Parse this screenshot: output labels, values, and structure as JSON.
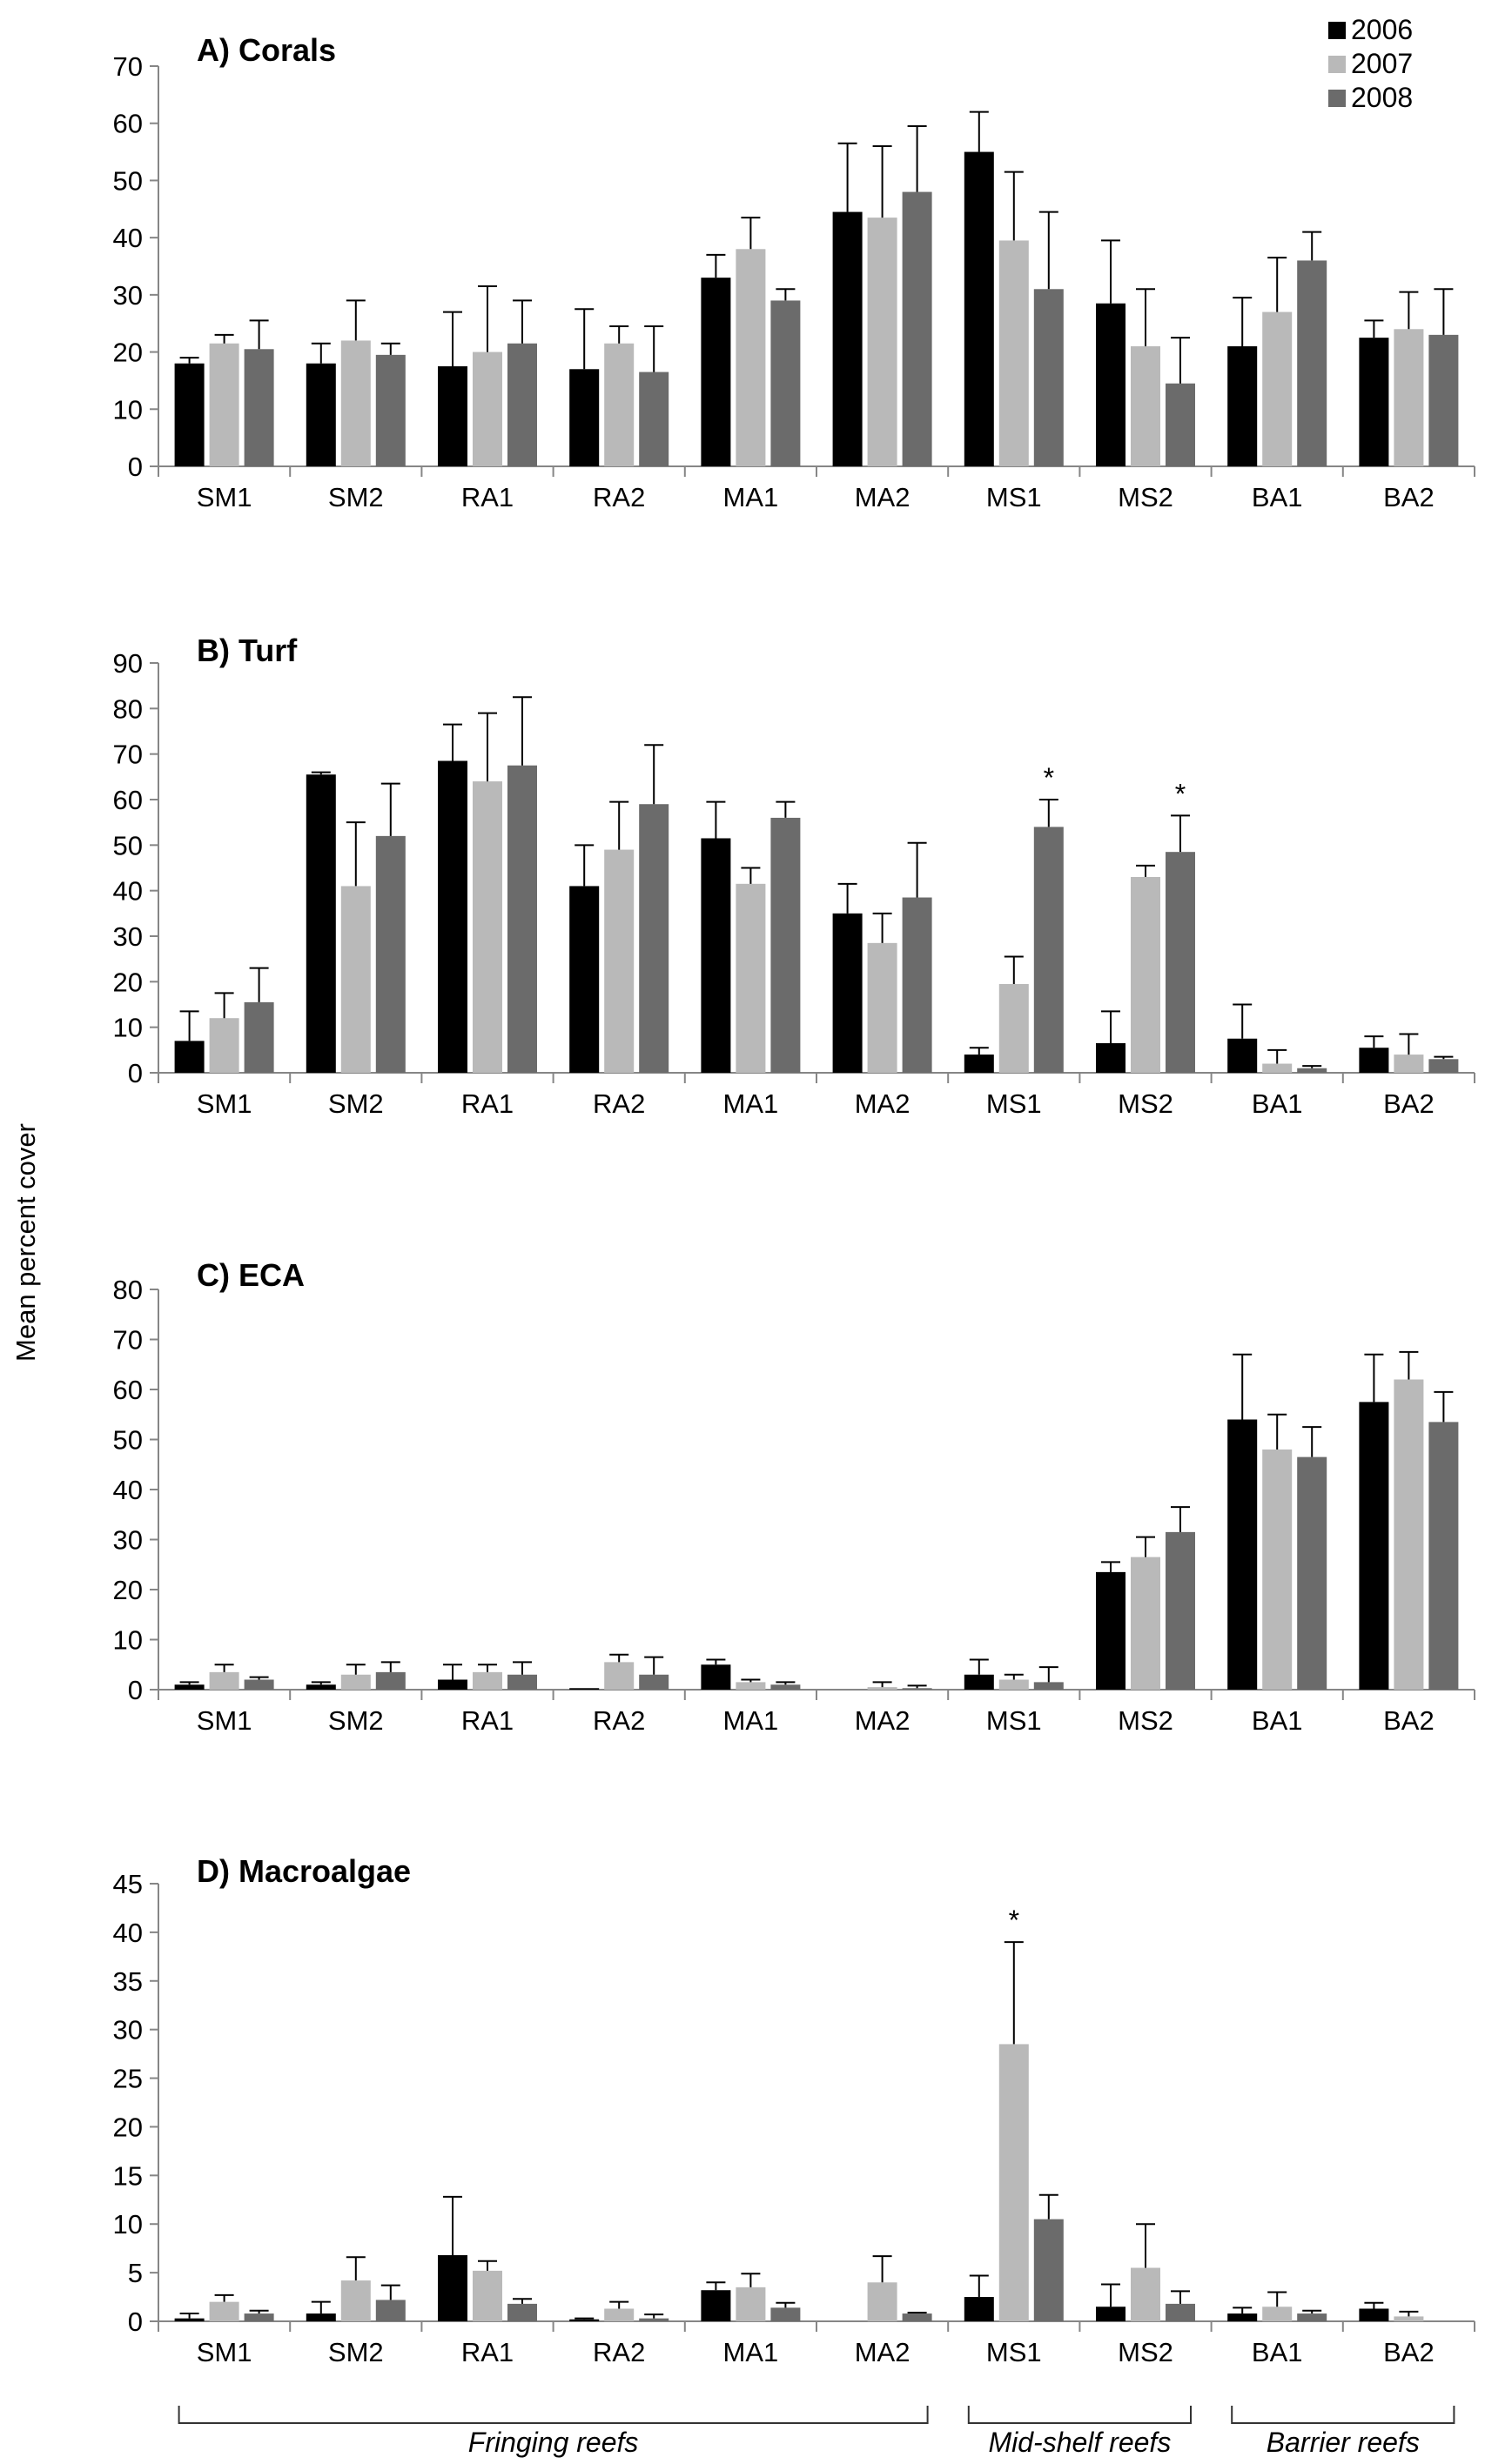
{
  "ylabel": "Mean percent cover",
  "legend": [
    {
      "year": "2006",
      "color": "#000000"
    },
    {
      "year": "2007",
      "color": "#b9b9b9"
    },
    {
      "year": "2008",
      "color": "#6b6b6b"
    }
  ],
  "groups": [
    {
      "label": "Fringing reefs",
      "from": "SM1",
      "to": "MA2"
    },
    {
      "label": "Mid-shelf reefs",
      "from": "MS1",
      "to": "MS2"
    },
    {
      "label": "Barrier reefs",
      "from": "BA1",
      "to": "BA2"
    }
  ],
  "chart_data": [
    {
      "type": "bar",
      "title": "A) Corals",
      "xlabel": "",
      "ylabel": "Mean percent cover",
      "categories": [
        "SM1",
        "SM2",
        "RA1",
        "RA2",
        "MA1",
        "MA2",
        "MS1",
        "MS2",
        "BA1",
        "BA2"
      ],
      "ylim": [
        0,
        70
      ],
      "yticks": [
        0,
        10,
        20,
        30,
        40,
        50,
        60,
        70
      ],
      "series": [
        {
          "name": "2006",
          "values": [
            18,
            18,
            17.5,
            17,
            33,
            44.5,
            55,
            28.5,
            21,
            22.5
          ],
          "errors": [
            1,
            3.5,
            9.5,
            10.5,
            4,
            12,
            7,
            11,
            8.5,
            3
          ]
        },
        {
          "name": "2007",
          "values": [
            21.5,
            22,
            20,
            21.5,
            38,
            43.5,
            39.5,
            21,
            27,
            24
          ],
          "errors": [
            1.5,
            7,
            11.5,
            3,
            5.5,
            12.5,
            12,
            10,
            9.5,
            6.5
          ]
        },
        {
          "name": "2008",
          "values": [
            20.5,
            19.5,
            21.5,
            16.5,
            29,
            48,
            31,
            14.5,
            36,
            23
          ],
          "errors": [
            5,
            2,
            7.5,
            8,
            2,
            11.5,
            13.5,
            8,
            5,
            8
          ]
        }
      ],
      "annotations": []
    },
    {
      "type": "bar",
      "title": "B) Turf",
      "xlabel": "",
      "ylabel": "Mean percent cover",
      "categories": [
        "SM1",
        "SM2",
        "RA1",
        "RA2",
        "MA1",
        "MA2",
        "MS1",
        "MS2",
        "BA1",
        "BA2"
      ],
      "ylim": [
        0,
        90
      ],
      "yticks": [
        0,
        10,
        20,
        30,
        40,
        50,
        60,
        70,
        80,
        90
      ],
      "series": [
        {
          "name": "2006",
          "values": [
            7,
            65.5,
            68.5,
            41,
            51.5,
            35,
            4,
            6.5,
            7.5,
            5.5
          ],
          "errors": [
            6.5,
            0.5,
            8,
            9,
            8,
            6.5,
            1.5,
            7,
            7.5,
            2.5
          ]
        },
        {
          "name": "2007",
          "values": [
            12,
            41,
            64,
            49,
            41.5,
            28.5,
            19.5,
            43,
            2,
            4
          ],
          "errors": [
            5.5,
            14,
            15,
            10.5,
            3.5,
            6.5,
            6,
            2.5,
            3,
            4.5
          ]
        },
        {
          "name": "2008",
          "values": [
            15.5,
            52,
            67.5,
            59,
            56,
            38.5,
            54,
            48.5,
            1,
            3
          ],
          "errors": [
            7.5,
            11.5,
            15,
            13,
            3.5,
            12,
            6,
            8,
            0.5,
            0.5
          ]
        }
      ],
      "annotations": [
        {
          "text": "*",
          "category": "MS1",
          "series": "2008"
        },
        {
          "text": "*",
          "category": "MS2",
          "series": "2008"
        }
      ]
    },
    {
      "type": "bar",
      "title": "C) ECA",
      "xlabel": "",
      "ylabel": "Mean percent cover",
      "categories": [
        "SM1",
        "SM2",
        "RA1",
        "RA2",
        "MA1",
        "MA2",
        "MS1",
        "MS2",
        "BA1",
        "BA2"
      ],
      "ylim": [
        0,
        80
      ],
      "yticks": [
        0,
        10,
        20,
        30,
        40,
        50,
        60,
        70,
        80
      ],
      "series": [
        {
          "name": "2006",
          "values": [
            1,
            1,
            2,
            0.3,
            5,
            0,
            3,
            23.5,
            54,
            57.5
          ],
          "errors": [
            0.5,
            0.5,
            3,
            0,
            1,
            0,
            3,
            2,
            13,
            9.5
          ]
        },
        {
          "name": "2007",
          "values": [
            3.5,
            3,
            3.5,
            5.5,
            1.5,
            0.5,
            2,
            26.5,
            48,
            62
          ],
          "errors": [
            1.5,
            2,
            1.5,
            1.5,
            0.5,
            1,
            1,
            4,
            7,
            5.5
          ]
        },
        {
          "name": "2008",
          "values": [
            2,
            3.5,
            3,
            3,
            1,
            0.3,
            1.5,
            31.5,
            46.5,
            53.5
          ],
          "errors": [
            0.5,
            2,
            2.5,
            3.5,
            0.5,
            0.5,
            3,
            5,
            6,
            6
          ]
        }
      ],
      "annotations": []
    },
    {
      "type": "bar",
      "title": "D) Macroalgae",
      "xlabel": "",
      "ylabel": "Mean percent cover",
      "categories": [
        "SM1",
        "SM2",
        "RA1",
        "RA2",
        "MA1",
        "MA2",
        "MS1",
        "MS2",
        "BA1",
        "BA2"
      ],
      "ylim": [
        0,
        45
      ],
      "yticks": [
        0,
        5,
        10,
        15,
        20,
        25,
        30,
        35,
        40,
        45
      ],
      "series": [
        {
          "name": "2006",
          "values": [
            0.3,
            0.8,
            6.8,
            0.2,
            3.2,
            0,
            2.5,
            1.5,
            0.8,
            1.3
          ],
          "errors": [
            0.5,
            1.2,
            6,
            0.1,
            0.8,
            0,
            2.2,
            2.3,
            0.6,
            0.6
          ]
        },
        {
          "name": "2007",
          "values": [
            2,
            4.2,
            5.2,
            1.3,
            3.5,
            4,
            28.5,
            5.5,
            1.5,
            0.5
          ],
          "errors": [
            0.7,
            2.4,
            1,
            0.7,
            1.4,
            2.7,
            10.5,
            4.5,
            1.5,
            0.5
          ]
        },
        {
          "name": "2008",
          "values": [
            0.8,
            2.2,
            1.8,
            0.3,
            1.4,
            0.8,
            10.5,
            1.8,
            0.8,
            0
          ],
          "errors": [
            0.3,
            1.5,
            0.5,
            0.4,
            0.5,
            0.1,
            2.5,
            1.3,
            0.3,
            0
          ]
        }
      ],
      "annotations": [
        {
          "text": "*",
          "category": "MS1",
          "series": "2007"
        }
      ]
    }
  ]
}
